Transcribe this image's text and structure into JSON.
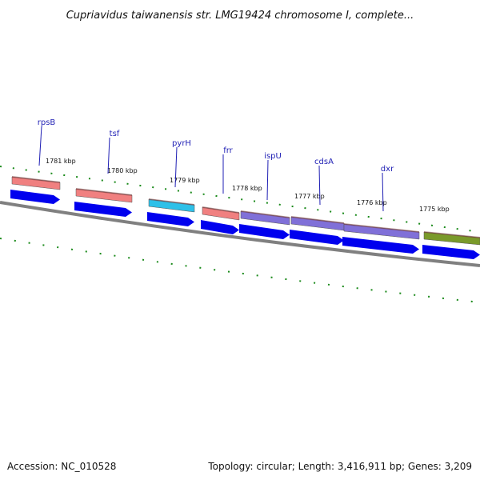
{
  "title": "Cupriavidus taiwanensis str. LMG19424 chromosome I, complete...",
  "footer": {
    "accession": "Accession: NC_010528",
    "summary": "Topology: circular; Length: 3,416,911 bp; Genes: 3,209"
  },
  "kbp_ticks": [
    "1781 kbp",
    "1780 kbp",
    "1779 kbp",
    "1778 kbp",
    "1777 kbp",
    "1776 kbp",
    "1775 kbp"
  ],
  "genes": [
    {
      "name": "rpsB",
      "color": "#f08080"
    },
    {
      "name": "tsf",
      "color": "#f08080"
    },
    {
      "name": "pyrH",
      "color": "#2ec0e8"
    },
    {
      "name": "frr",
      "color": "#f08080"
    },
    {
      "name": "ispU",
      "color": "#8070d8"
    },
    {
      "name": "cdsA",
      "color": "#8070d8"
    },
    {
      "name": "dxr",
      "color": "#8070d8"
    },
    {
      "name": "",
      "color": "#7a9a2a"
    }
  ],
  "colors": {
    "cds": "#0000ee",
    "backbone": "#808080",
    "ticks": "#1a8a1a",
    "label_lines": "#1f1fb4"
  }
}
